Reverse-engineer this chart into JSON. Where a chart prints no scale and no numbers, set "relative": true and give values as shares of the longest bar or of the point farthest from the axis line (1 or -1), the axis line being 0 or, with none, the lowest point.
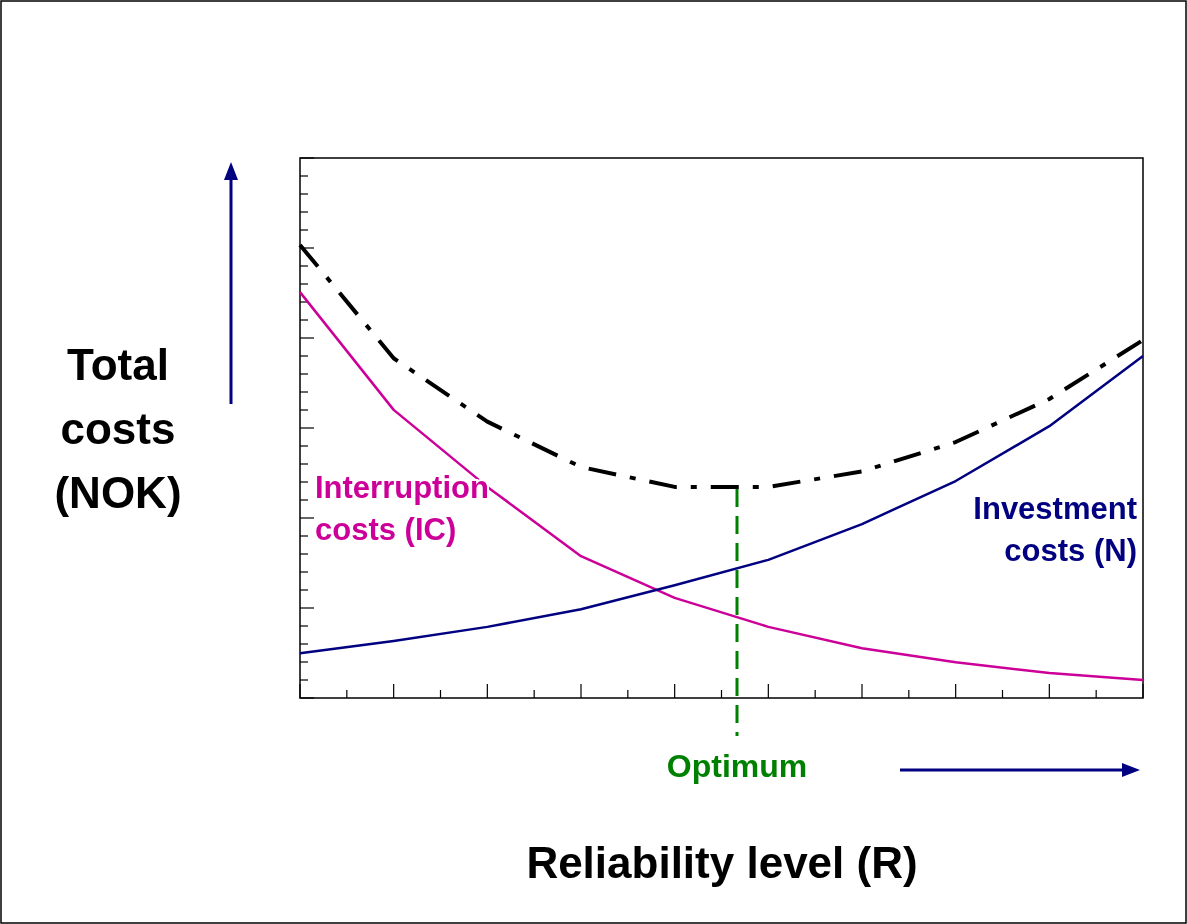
{
  "chart_data": {
    "type": "line",
    "relative": true,
    "xlabel": "Reliability level (R)",
    "ylabel": "Total costs (NOK)",
    "categories": [
      null,
      null,
      null,
      null,
      null,
      null,
      null,
      null,
      null,
      null
    ],
    "series": [
      {
        "color": "#000000",
        "line_style": "dashed",
        "values": [
          1.0,
          0.75,
          0.61,
          0.51,
          0.466,
          0.466,
          0.5,
          0.565,
          0.66,
          0.79
        ]
      },
      {
        "name": "Interruption costs (IC)",
        "color": "#cc0099",
        "line_style": "solid",
        "values": [
          0.896,
          0.636,
          0.466,
          0.313,
          0.221,
          0.157,
          0.11,
          0.079,
          0.055,
          0.04
        ]
      },
      {
        "name": "Investment costs (N)",
        "color": "#000080",
        "line_style": "solid",
        "values": [
          0.099,
          0.126,
          0.157,
          0.196,
          0.249,
          0.305,
          0.384,
          0.479,
          0.6,
          0.755
        ]
      }
    ],
    "annotations": [
      "Optimum"
    ],
    "marker": "none"
  }
}
